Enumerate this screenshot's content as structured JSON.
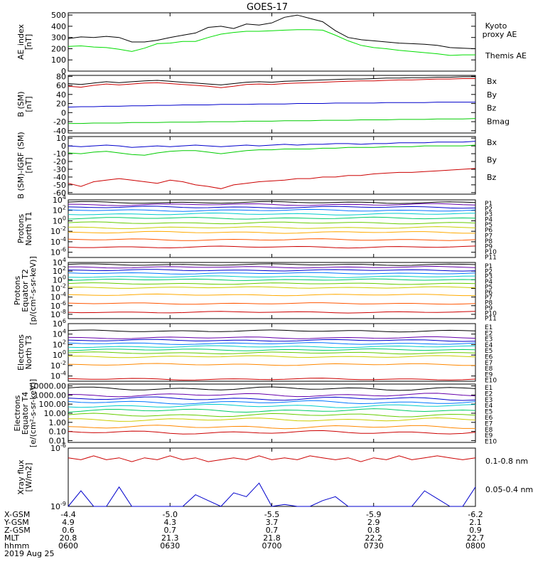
{
  "title": "GOES-17",
  "date_label": "2019 Aug 25",
  "chart_data": [
    {
      "type": "line",
      "id": "ae",
      "ylabel": "AE_index\n[nT]",
      "yticks": [
        "500",
        "400",
        "300",
        "200",
        "100",
        "0"
      ],
      "ylim": [
        0,
        520
      ],
      "series": [
        {
          "name": "Kyoto proxy AE",
          "color": "#00dd00",
          "values": [
            220,
            225,
            215,
            210,
            195,
            175,
            205,
            245,
            250,
            265,
            265,
            300,
            330,
            345,
            355,
            355,
            360,
            365,
            370,
            370,
            365,
            320,
            270,
            230,
            210,
            200,
            185,
            175,
            165,
            155,
            140,
            145,
            145
          ]
        },
        {
          "name": "Themis AE",
          "color": "#000000",
          "values": [
            290,
            305,
            300,
            310,
            300,
            260,
            260,
            275,
            300,
            320,
            340,
            390,
            400,
            380,
            420,
            410,
            430,
            480,
            500,
            470,
            440,
            360,
            300,
            280,
            270,
            260,
            250,
            245,
            240,
            230,
            210,
            205,
            200
          ]
        }
      ]
    },
    {
      "type": "line",
      "id": "bsm",
      "ylabel": "B (SM)\n[nT]",
      "yticks": [
        "80",
        "60",
        "40",
        "20",
        "0",
        "-20",
        "-40"
      ],
      "ylim": [
        -45,
        82
      ],
      "series": [
        {
          "name": "Bx",
          "color": "#0000cc",
          "values": [
            12,
            13,
            13,
            14,
            14,
            15,
            15,
            16,
            16,
            17,
            17,
            17,
            18,
            18,
            18,
            19,
            19,
            19,
            20,
            20,
            20,
            21,
            21,
            21,
            21,
            22,
            22,
            22,
            22,
            23,
            23,
            23,
            23
          ]
        },
        {
          "name": "By",
          "color": "#00cc00",
          "values": [
            -24,
            -24,
            -23,
            -23,
            -23,
            -22,
            -22,
            -22,
            -21,
            -21,
            -21,
            -20,
            -20,
            -20,
            -19,
            -19,
            -19,
            -18,
            -18,
            -18,
            -17,
            -17,
            -17,
            -16,
            -16,
            -16,
            -15,
            -15,
            -15,
            -14,
            -14,
            -14,
            -13
          ]
        },
        {
          "name": "Bz",
          "color": "#cc0000",
          "values": [
            58,
            56,
            60,
            63,
            61,
            63,
            65,
            66,
            64,
            62,
            60,
            58,
            55,
            58,
            62,
            63,
            62,
            64,
            65,
            66,
            67,
            68,
            69,
            70,
            70,
            71,
            72,
            72,
            73,
            74,
            74,
            75,
            75
          ]
        },
        {
          "name": "Bmag",
          "color": "#000000",
          "values": [
            64,
            62,
            65,
            68,
            66,
            68,
            70,
            71,
            69,
            67,
            65,
            63,
            61,
            64,
            67,
            68,
            67,
            69,
            70,
            71,
            72,
            73,
            74,
            74,
            75,
            76,
            76,
            77,
            77,
            78,
            78,
            79,
            79
          ]
        }
      ]
    },
    {
      "type": "line",
      "id": "bsmigrf",
      "ylabel": "B (SM)-IGRF (SM)\n[nT]",
      "yticks": [
        "10",
        "0",
        "-10",
        "-20",
        "-30",
        "-40",
        "-50",
        "-60"
      ],
      "ylim": [
        -62,
        12
      ],
      "series": [
        {
          "name": "Bx",
          "color": "#0000cc",
          "values": [
            0,
            -1,
            0,
            1,
            0,
            -2,
            -1,
            0,
            -1,
            0,
            1,
            0,
            -1,
            0,
            1,
            0,
            1,
            2,
            1,
            2,
            2,
            3,
            3,
            2,
            3,
            3,
            4,
            4,
            4,
            5,
            5,
            5,
            6
          ]
        },
        {
          "name": "By",
          "color": "#00cc00",
          "values": [
            -9,
            -10,
            -8,
            -7,
            -9,
            -11,
            -12,
            -9,
            -7,
            -6,
            -6,
            -8,
            -10,
            -8,
            -6,
            -5,
            -5,
            -4,
            -4,
            -4,
            -3,
            -3,
            -2,
            -2,
            -2,
            -1,
            -1,
            -1,
            0,
            0,
            0,
            0,
            1
          ]
        },
        {
          "name": "Bz",
          "color": "#cc0000",
          "values": [
            -48,
            -52,
            -46,
            -44,
            -42,
            -44,
            -46,
            -48,
            -44,
            -46,
            -50,
            -52,
            -55,
            -50,
            -48,
            -46,
            -45,
            -44,
            -42,
            -42,
            -40,
            -40,
            -38,
            -38,
            -36,
            -35,
            -34,
            -34,
            -33,
            -32,
            -31,
            -30,
            -29
          ]
        }
      ]
    },
    {
      "type": "line",
      "id": "pnorth",
      "ylog": true,
      "ylabel": "Protons\nNorth T1",
      "yticks": [
        "10^4",
        "10^2",
        "10^0",
        "10^-2",
        "10^-4",
        "10^-6"
      ],
      "ylim_exp": [
        -7,
        4
      ],
      "legend": [
        "P1",
        "P2",
        "P3",
        "P4",
        "P5",
        "P6",
        "P7",
        "P8",
        "P9",
        "P10",
        "P11"
      ],
      "levels_exp": [
        3.5,
        3.1,
        2.6,
        2.0,
        1.3,
        0.5,
        -0.4,
        -1.3,
        -2.2,
        -3.6,
        -5.0
      ],
      "colors": [
        "#000000",
        "#6600aa",
        "#0000cc",
        "#0077ff",
        "#00cccc",
        "#00cc66",
        "#66cc00",
        "#cccc00",
        "#ffaa00",
        "#ff5500",
        "#cc0000"
      ]
    },
    {
      "type": "line",
      "id": "pequator",
      "ylog": true,
      "ylabel": "Protons\nEquator T2\n[p/(cm²-s-sr-keV)]",
      "yticks": [
        "10^4",
        "10^2",
        "10^0",
        "10^-2",
        "10^-4",
        "10^-6",
        "10^-8"
      ],
      "ylim_exp": [
        -9,
        4
      ],
      "legend": [
        "P1",
        "P2",
        "P3",
        "P4",
        "P5",
        "P6",
        "P7",
        "P8",
        "P9",
        "P10",
        "P11"
      ],
      "levels_exp": [
        3.5,
        2.9,
        2.2,
        1.5,
        0.7,
        0.0,
        -0.9,
        -1.8,
        -3.5,
        -5.5,
        -7.5
      ],
      "colors": [
        "#000000",
        "#6600aa",
        "#0000cc",
        "#0077ff",
        "#00cccc",
        "#00cc66",
        "#66cc00",
        "#cccc00",
        "#ffaa00",
        "#ff5500",
        "#cc0000"
      ]
    },
    {
      "type": "line",
      "id": "enorth",
      "ylog": true,
      "ylabel": "Electrons\nNorth T3",
      "yticks": [
        "10^6",
        "10^4",
        "10^2",
        "10^0",
        "10^-2",
        "10^-4"
      ],
      "ylim_exp": [
        -5,
        6
      ],
      "legend": [
        "E1",
        "E2",
        "E3",
        "E4",
        "E5",
        "E6",
        "E7",
        "E8",
        "E9",
        "E10"
      ],
      "levels_exp": [
        4.6,
        3.3,
        2.8,
        2.2,
        1.6,
        1.0,
        0.4,
        -0.3,
        -1.8,
        -4.6
      ],
      "colors": [
        "#000000",
        "#6600aa",
        "#0000cc",
        "#0077ff",
        "#00cccc",
        "#00cc66",
        "#66cc00",
        "#cccc00",
        "#ff8800",
        "#cc0000"
      ]
    },
    {
      "type": "line",
      "id": "eequator",
      "ylog": true,
      "ylabel": "Electrons\nEquator T4\n[e/(cm²-s-sr-keV)]",
      "yticks": [
        "10000.00",
        "1000.00",
        "100.00",
        "10.00",
        "1.00",
        "0.10",
        "0.01"
      ],
      "ylim_exp": [
        -2.2,
        4.2
      ],
      "legend": [
        "E1",
        "E2",
        "E3",
        "E4",
        "E5",
        "E6",
        "E7",
        "E8",
        "E9",
        "E10"
      ],
      "levels_exp": [
        3.7,
        3.0,
        2.6,
        2.2,
        1.8,
        1.3,
        0.8,
        0.3,
        -0.5,
        -1.1
      ],
      "colors": [
        "#000000",
        "#6600aa",
        "#0000cc",
        "#0077ff",
        "#00cccc",
        "#00cc66",
        "#66cc00",
        "#cccc00",
        "#ff8800",
        "#cc0000"
      ]
    },
    {
      "type": "line",
      "id": "xray",
      "ylog": true,
      "ylabel": "Xray flux\n[W/m2]",
      "yticks": [
        "10^-6",
        "10^-9"
      ],
      "ylim_exp": [
        -9,
        -6
      ],
      "series": [
        {
          "name": "0.1-0.8 nm",
          "color": "#cc0000",
          "values_exp": [
            -6.5,
            -6.6,
            -6.4,
            -6.6,
            -6.5,
            -6.7,
            -6.5,
            -6.6,
            -6.4,
            -6.6,
            -6.5,
            -6.7,
            -6.6,
            -6.5,
            -6.6,
            -6.4,
            -6.6,
            -6.5,
            -6.6,
            -6.4,
            -6.5,
            -6.6,
            -6.5,
            -6.7,
            -6.5,
            -6.6,
            -6.4,
            -6.6,
            -6.5,
            -6.4,
            -6.5,
            -6.6,
            -6.5
          ]
        },
        {
          "name": "0.05-0.4 nm",
          "color": "#0000cc",
          "values_exp": [
            -9,
            -8.2,
            -9,
            -9,
            -8,
            -9,
            -9,
            -9,
            -9,
            -9,
            -8.4,
            -8.7,
            -9,
            -8.3,
            -8.5,
            -7.8,
            -9,
            -8.9,
            -9,
            -9,
            -8.7,
            -8.5,
            -9,
            -9,
            -9,
            -9,
            -9,
            -9,
            -8.2,
            -8.6,
            -9,
            -9,
            -8
          ]
        }
      ]
    }
  ],
  "x_axis": {
    "row_labels": [
      "X-GSM",
      "Y-GSM",
      "Z-GSM",
      "MLT",
      "hhmm"
    ],
    "ticks": [
      [
        "-4.4",
        "4.9",
        "0.6",
        "20.8",
        "0600"
      ],
      [
        "-5.0",
        "4.3",
        "0.7",
        "21.3",
        "0630"
      ],
      [
        "-5.5",
        "3.7",
        "0.7",
        "21.8",
        "0700"
      ],
      [
        "-5.9",
        "2.9",
        "0.8",
        "22.2",
        "0730"
      ],
      [
        "-6.2",
        "2.1",
        "0.9",
        "22.7",
        "0800"
      ]
    ]
  }
}
